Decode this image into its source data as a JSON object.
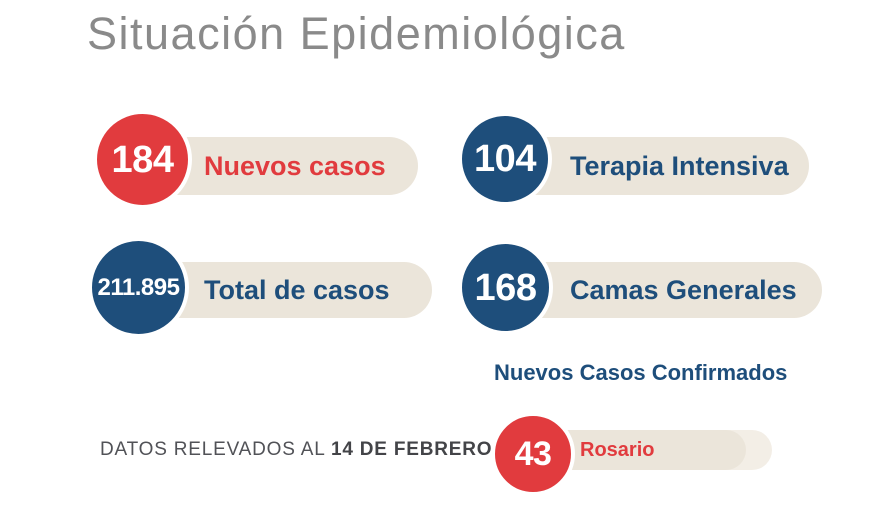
{
  "title": "Situación Epidemiológica",
  "colors": {
    "red": "#e13b3e",
    "blue": "#1e4e7b",
    "pill_beige": "#ebe5da",
    "pill_echo": "#f3eee6",
    "title_gray": "#8a8a8a",
    "footer_gray": "#515257",
    "number_text": "#ffffff"
  },
  "stats": [
    {
      "value": "184",
      "label": "Nuevos casos",
      "accent": "red"
    },
    {
      "value": "104",
      "label": "Terapia Intensiva",
      "accent": "blue"
    },
    {
      "value": "211.895",
      "label": "Total de casos",
      "accent": "blue"
    },
    {
      "value": "168",
      "label": "Camas Generales",
      "accent": "blue"
    }
  ],
  "confirmed": {
    "heading": "Nuevos Casos Confirmados",
    "items": [
      {
        "value": "43",
        "label": "Rosario",
        "accent": "red"
      }
    ]
  },
  "footer": {
    "prefix": "DATOS RELEVADOS AL ",
    "date": "14 DE FEBRERO"
  },
  "chart_data": {
    "type": "table",
    "title": "Situación Epidemiológica",
    "categories": [
      "Nuevos casos",
      "Terapia Intensiva",
      "Total de casos",
      "Camas Generales",
      "Nuevos Casos Confirmados - Rosario"
    ],
    "values": [
      184,
      104,
      211895,
      168,
      43
    ],
    "note": "DATOS RELEVADOS AL 14 DE FEBRERO"
  }
}
